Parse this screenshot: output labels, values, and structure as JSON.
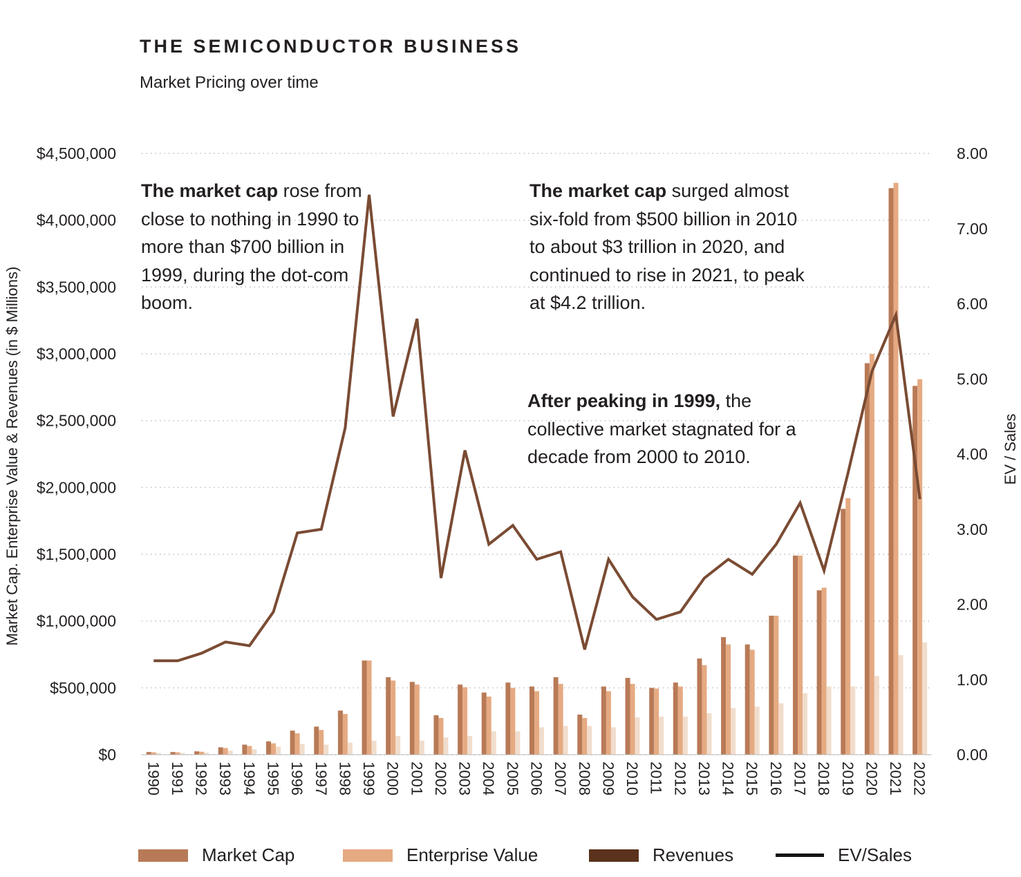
{
  "header": {
    "title": "THE SEMICONDUCTOR BUSINESS",
    "subtitle": "Market Pricing over time"
  },
  "annotations": {
    "a1_bold": "The market cap",
    "a1_rest": " rose from close to nothing in 1990 to more than $700 billion in 1999, during the dot-com boom.",
    "a2_bold": "The market cap",
    "a2_rest": " surged almost six-fold from $500 billion in 2010 to about $3 trillion in 2020, and continued to rise in 2021, to peak at $4.2 trillion.",
    "a3_bold": "After peaking in 1999,",
    "a3_rest": " the collective market stagnated for a decade from 2000 to 2010."
  },
  "legend": {
    "market_cap": "Market Cap",
    "enterprise_value": "Enterprise Value",
    "revenues": "Revenues",
    "ev_sales": "EV/Sales"
  },
  "colors": {
    "market_cap": "#b87a56",
    "enterprise_value": "#e5aa82",
    "revenues": "#f1ddcc",
    "revenues_legend": "#5b321c",
    "ev_sales": "#7a4b33",
    "grid": "#bbbbbb"
  },
  "chart_data": {
    "type": "bar",
    "title": "THE SEMICONDUCTOR BUSINESS",
    "subtitle": "Market Pricing over time",
    "ylabel": "Market Cap. Enterprise Value & Revenues (in $ Millions)",
    "y2label": "EV / Sales",
    "ylim": [
      0,
      4500000
    ],
    "y2lim": [
      0,
      8
    ],
    "yticks": [
      "$0",
      "$500,000",
      "$1,000,000",
      "$1,500,000",
      "$2,000,000",
      "$2,500,000",
      "$3,000,000",
      "$3,500,000",
      "$4,000,000",
      "$4,500,000"
    ],
    "y2ticks": [
      "0.00",
      "1.00",
      "2.00",
      "3.00",
      "4.00",
      "5.00",
      "6.00",
      "7.00",
      "8.00"
    ],
    "grid": true,
    "legend_position": "bottom",
    "categories": [
      "1990",
      "1991",
      "1992",
      "1993",
      "1994",
      "1995",
      "1996",
      "1997",
      "1998",
      "1999",
      "2000",
      "2001",
      "2002",
      "2003",
      "2004",
      "2005",
      "2006",
      "2007",
      "2008",
      "2009",
      "2010",
      "2011",
      "2012",
      "2013",
      "2014",
      "2015",
      "2016",
      "2017",
      "2018",
      "2019",
      "2020",
      "2021",
      "2022"
    ],
    "series": [
      {
        "name": "Market Cap",
        "type": "bar",
        "values": [
          20000,
          20000,
          25000,
          55000,
          75000,
          100000,
          180000,
          210000,
          330000,
          705000,
          580000,
          545000,
          295000,
          525000,
          465000,
          540000,
          510000,
          580000,
          300000,
          510000,
          575000,
          500000,
          540000,
          720000,
          880000,
          825000,
          1040000,
          1490000,
          1230000,
          1840000,
          2930000,
          4240000,
          2760000
        ]
      },
      {
        "name": "Enterprise Value",
        "type": "bar",
        "values": [
          18000,
          18000,
          22000,
          50000,
          65000,
          85000,
          160000,
          185000,
          305000,
          705000,
          555000,
          525000,
          275000,
          505000,
          435000,
          500000,
          475000,
          530000,
          275000,
          475000,
          530000,
          495000,
          510000,
          670000,
          825000,
          785000,
          1040000,
          1490000,
          1250000,
          1920000,
          3000000,
          4280000,
          2810000
        ]
      },
      {
        "name": "Revenues",
        "type": "bar",
        "values": [
          12000,
          12000,
          15000,
          30000,
          40000,
          60000,
          80000,
          75000,
          90000,
          105000,
          140000,
          105000,
          130000,
          140000,
          175000,
          175000,
          205000,
          215000,
          215000,
          205000,
          280000,
          285000,
          285000,
          310000,
          350000,
          360000,
          385000,
          460000,
          510000,
          510000,
          590000,
          745000,
          840000
        ]
      },
      {
        "name": "EV/Sales",
        "type": "line",
        "axis": "right",
        "values": [
          1.25,
          1.25,
          1.35,
          1.5,
          1.45,
          1.9,
          2.95,
          3.0,
          4.35,
          7.45,
          4.5,
          5.8,
          2.35,
          4.05,
          2.8,
          3.05,
          2.6,
          2.7,
          1.4,
          2.6,
          2.1,
          1.8,
          1.9,
          2.35,
          2.6,
          2.4,
          2.8,
          3.35,
          2.45,
          3.75,
          5.1,
          5.85,
          3.4
        ]
      }
    ]
  }
}
